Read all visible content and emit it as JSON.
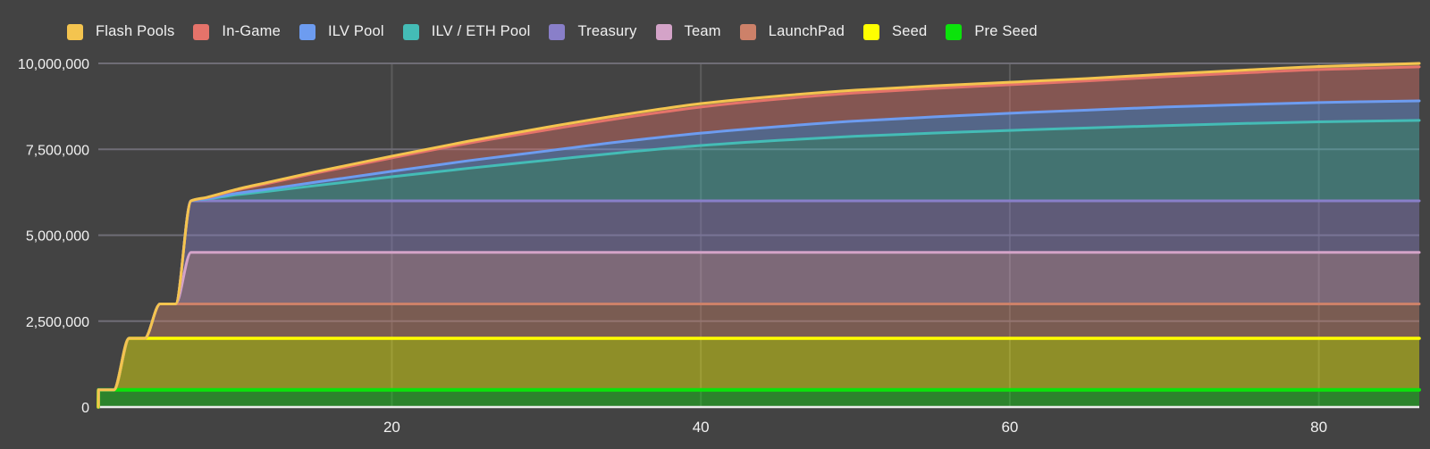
{
  "page": {
    "background": "#434343",
    "axis_text_color": "#f2f2f2"
  },
  "legend": {
    "position": "top",
    "items": [
      {
        "label": "Flash Pools",
        "color": "#f4c44f"
      },
      {
        "label": "In-Game",
        "color": "#e5736a"
      },
      {
        "label": "ILV Pool",
        "color": "#6d9cf0"
      },
      {
        "label": "ILV / ETH Pool",
        "color": "#44bcb6"
      },
      {
        "label": "Treasury",
        "color": "#897fc9"
      },
      {
        "label": "Team",
        "color": "#d4a3c8"
      },
      {
        "label": "LaunchPad",
        "color": "#cd8169"
      },
      {
        "label": "Seed",
        "color": "#ffff00"
      },
      {
        "label": "Pre Seed",
        "color": "#0be30b"
      }
    ]
  },
  "chart_data": {
    "type": "area",
    "stacked": true,
    "title": "",
    "xlabel": "",
    "ylabel": "",
    "xlim": [
      1,
      86.5
    ],
    "ylim": [
      0,
      10000000
    ],
    "grid": {
      "horizontal_color": "#6f6d76",
      "vertical_color": "#5c5c5c",
      "baseline_color": "#ececec"
    },
    "fill_opacity": 0.4,
    "x_ticks": [
      {
        "value": 20,
        "label": "20"
      },
      {
        "value": 40,
        "label": "40"
      },
      {
        "value": 60,
        "label": "60"
      },
      {
        "value": 80,
        "label": "80"
      }
    ],
    "y_ticks": [
      {
        "value": 0,
        "label": "0"
      },
      {
        "value": 2500000,
        "label": "2,500,000"
      },
      {
        "value": 5000000,
        "label": "5,000,000"
      },
      {
        "value": 7500000,
        "label": "7,500,000"
      },
      {
        "value": 10000000,
        "label": "10,000,000"
      }
    ],
    "x": [
      1,
      1.01,
      2,
      3,
      4,
      5,
      6,
      7,
      8,
      10,
      12,
      15,
      20,
      25,
      30,
      35,
      40,
      45,
      50,
      55,
      60,
      65,
      70,
      75,
      80,
      86.5
    ],
    "series": [
      {
        "name": "Pre Seed",
        "color": "#0be30b",
        "line_width": 4,
        "values": [
          0,
          500000,
          500000,
          500000,
          500000,
          500000,
          500000,
          500000,
          500000,
          500000,
          500000,
          500000,
          500000,
          500000,
          500000,
          500000,
          500000,
          500000,
          500000,
          500000,
          500000,
          500000,
          500000,
          500000,
          500000,
          500000
        ]
      },
      {
        "name": "Seed",
        "color": "#ffff00",
        "line_width": 3.5,
        "values": [
          0,
          0,
          0,
          1500000,
          1500000,
          1500000,
          1500000,
          1500000,
          1500000,
          1500000,
          1500000,
          1500000,
          1500000,
          1500000,
          1500000,
          1500000,
          1500000,
          1500000,
          1500000,
          1500000,
          1500000,
          1500000,
          1500000,
          1500000,
          1500000,
          1500000
        ]
      },
      {
        "name": "LaunchPad",
        "color": "#cd8169",
        "line_width": 3,
        "values": [
          0,
          0,
          0,
          0,
          0,
          1000000,
          1000000,
          1000000,
          1000000,
          1000000,
          1000000,
          1000000,
          1000000,
          1000000,
          1000000,
          1000000,
          1000000,
          1000000,
          1000000,
          1000000,
          1000000,
          1000000,
          1000000,
          1000000,
          1000000,
          1000000
        ]
      },
      {
        "name": "Team",
        "color": "#d4a3c8",
        "line_width": 3,
        "values": [
          0,
          0,
          0,
          0,
          0,
          0,
          0,
          1500000,
          1500000,
          1500000,
          1500000,
          1500000,
          1500000,
          1500000,
          1500000,
          1500000,
          1500000,
          1500000,
          1500000,
          1500000,
          1500000,
          1500000,
          1500000,
          1500000,
          1500000,
          1500000
        ]
      },
      {
        "name": "Treasury",
        "color": "#897fc9",
        "line_width": 3,
        "values": [
          0,
          0,
          0,
          0,
          0,
          0,
          0,
          1500000,
          1500000,
          1500000,
          1500000,
          1500000,
          1500000,
          1500000,
          1500000,
          1500000,
          1500000,
          1500000,
          1500000,
          1500000,
          1500000,
          1500000,
          1500000,
          1500000,
          1500000,
          1500000
        ]
      },
      {
        "name": "ILV / ETH Pool",
        "color": "#44bcb6",
        "line_width": 3,
        "values": [
          0,
          0,
          0,
          0,
          0,
          0,
          0,
          0,
          50000,
          180000,
          280000,
          440000,
          700000,
          950000,
          1180000,
          1410000,
          1610000,
          1760000,
          1880000,
          1970000,
          2050000,
          2120000,
          2190000,
          2250000,
          2300000,
          2340000
        ]
      },
      {
        "name": "ILV Pool",
        "color": "#6d9cf0",
        "line_width": 3,
        "values": [
          0,
          0,
          0,
          0,
          0,
          0,
          0,
          0,
          10000,
          40000,
          60000,
          100000,
          160000,
          220000,
          270000,
          320000,
          360000,
          400000,
          440000,
          470000,
          500000,
          520000,
          540000,
          550000,
          560000,
          570000
        ]
      },
      {
        "name": "In-Game",
        "color": "#e5736a",
        "line_width": 3,
        "values": [
          0,
          0,
          0,
          0,
          0,
          0,
          0,
          0,
          30000,
          100000,
          170000,
          260000,
          390000,
          510000,
          610000,
          690000,
          760000,
          800000,
          820000,
          830000,
          830000,
          850000,
          880000,
          920000,
          960000,
          990000
        ]
      },
      {
        "name": "Flash Pools",
        "color": "#f4c44f",
        "line_width": 3,
        "values": [
          0,
          0,
          0,
          0,
          0,
          0,
          0,
          0,
          10000,
          20000,
          30000,
          40000,
          50000,
          60000,
          80000,
          90000,
          100000,
          90000,
          80000,
          75000,
          70000,
          70000,
          75000,
          80000,
          90000,
          100000
        ]
      }
    ]
  }
}
